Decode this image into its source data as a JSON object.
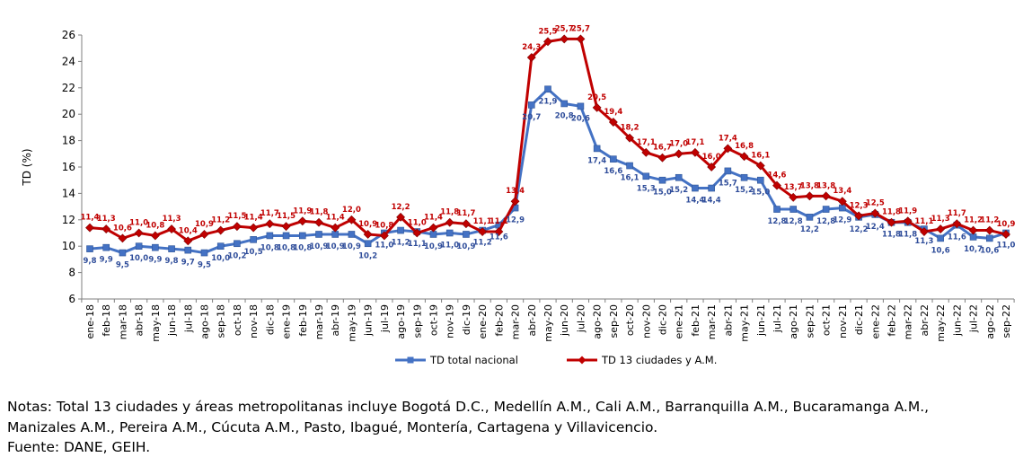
{
  "chart_data": {
    "type": "line",
    "ylabel": "TD (%)",
    "ylim": [
      6,
      26
    ],
    "yticks": [
      6,
      8,
      10,
      12,
      14,
      16,
      18,
      20,
      22,
      24,
      26
    ],
    "grid": false,
    "legend_position": "bottom",
    "categories": [
      "ene-18",
      "feb-18",
      "mar-18",
      "abr-18",
      "may-18",
      "jun-18",
      "jul-18",
      "ago-18",
      "sep-18",
      "oct-18",
      "nov-18",
      "dic-18",
      "ene-19",
      "feb-19",
      "mar-19",
      "abr-19",
      "may-19",
      "jun-19",
      "jul-19",
      "ago-19",
      "sep-19",
      "oct-19",
      "nov-19",
      "dic-19",
      "ene-20",
      "feb-20",
      "mar-20",
      "abr-20",
      "may-20",
      "jun-20",
      "jul-20",
      "ago-20",
      "sep-20",
      "oct-20",
      "nov-20",
      "dic-20",
      "ene-21",
      "feb-21",
      "mar-21",
      "abr-21",
      "may-21",
      "jun-21",
      "jul-21",
      "ago-21",
      "sep-21",
      "oct-21",
      "nov-21",
      "dic-21",
      "ene-22",
      "feb-22",
      "mar-22",
      "abr-22",
      "may-22",
      "jun-22",
      "jul-22",
      "ago-22",
      "sep-22"
    ],
    "series": [
      {
        "name": "TD total nacional",
        "color": "#4472C4",
        "marker": "square",
        "values": [
          9.8,
          9.9,
          9.5,
          10.0,
          9.9,
          9.8,
          9.7,
          9.5,
          10.0,
          10.2,
          10.5,
          10.8,
          10.8,
          10.8,
          10.9,
          10.9,
          10.9,
          10.2,
          11.0,
          11.2,
          11.1,
          10.9,
          11.0,
          10.9,
          11.2,
          11.6,
          12.9,
          20.7,
          21.9,
          20.8,
          20.6,
          17.4,
          16.6,
          16.1,
          15.3,
          15.0,
          15.2,
          14.4,
          14.4,
          15.7,
          15.2,
          15.0,
          12.8,
          12.8,
          12.2,
          12.8,
          12.9,
          12.2,
          12.4,
          11.8,
          11.8,
          11.3,
          10.6,
          11.6,
          10.7,
          10.6,
          11.0
        ]
      },
      {
        "name": "TD 13 ciudades y A.M.",
        "color": "#C00000",
        "marker": "diamond",
        "values": [
          11.4,
          11.3,
          10.6,
          11.0,
          10.8,
          11.3,
          10.4,
          10.9,
          11.2,
          11.5,
          11.4,
          11.7,
          11.5,
          11.9,
          11.8,
          11.4,
          12.0,
          10.9,
          10.8,
          12.2,
          11.0,
          11.4,
          11.8,
          11.7,
          11.1,
          11.1,
          13.4,
          24.3,
          25.5,
          25.7,
          25.7,
          20.5,
          19.4,
          18.2,
          17.1,
          16.7,
          17.0,
          17.1,
          16.0,
          17.4,
          16.8,
          16.1,
          14.6,
          13.7,
          13.8,
          13.8,
          13.4,
          12.3,
          12.5,
          11.8,
          11.9,
          11.1,
          11.3,
          11.7,
          11.2,
          11.2,
          10.9
        ]
      }
    ]
  },
  "notes": {
    "line1": "Notas: Total 13 ciudades y áreas metropolitanas incluye Bogotá D.C., Medellín A.M., Cali A.M., Barranquilla A.M., Bucaramanga A.M.,",
    "line2": "Manizales A.M., Pereira A.M., Cúcuta A.M., Pasto, Ibagué, Montería, Cartagena y Villavicencio.",
    "line3": "Fuente: DANE, GEIH."
  }
}
